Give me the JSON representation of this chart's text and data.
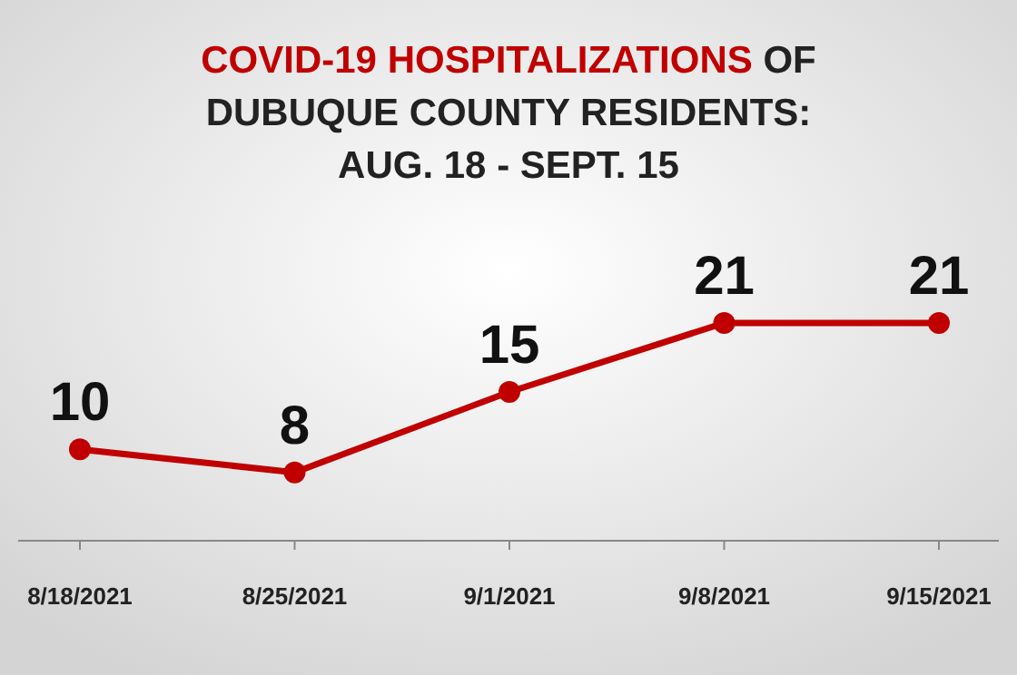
{
  "chart_data": {
    "type": "line",
    "title": "COVID-19 HOSPITALIZATIONS OF\nDUBUQUE COUNTY RESIDENTS:\nAUG. 18 - SEPT. 15",
    "categories": [
      "8/18/2021",
      "8/25/2021",
      "9/1/2021",
      "9/8/2021",
      "9/15/2021"
    ],
    "series": [
      {
        "color": "#c00000",
        "values": [
          10,
          8,
          15,
          21,
          21
        ]
      }
    ],
    "data_labels": true,
    "marker": "circle",
    "line_style": "solid"
  }
}
